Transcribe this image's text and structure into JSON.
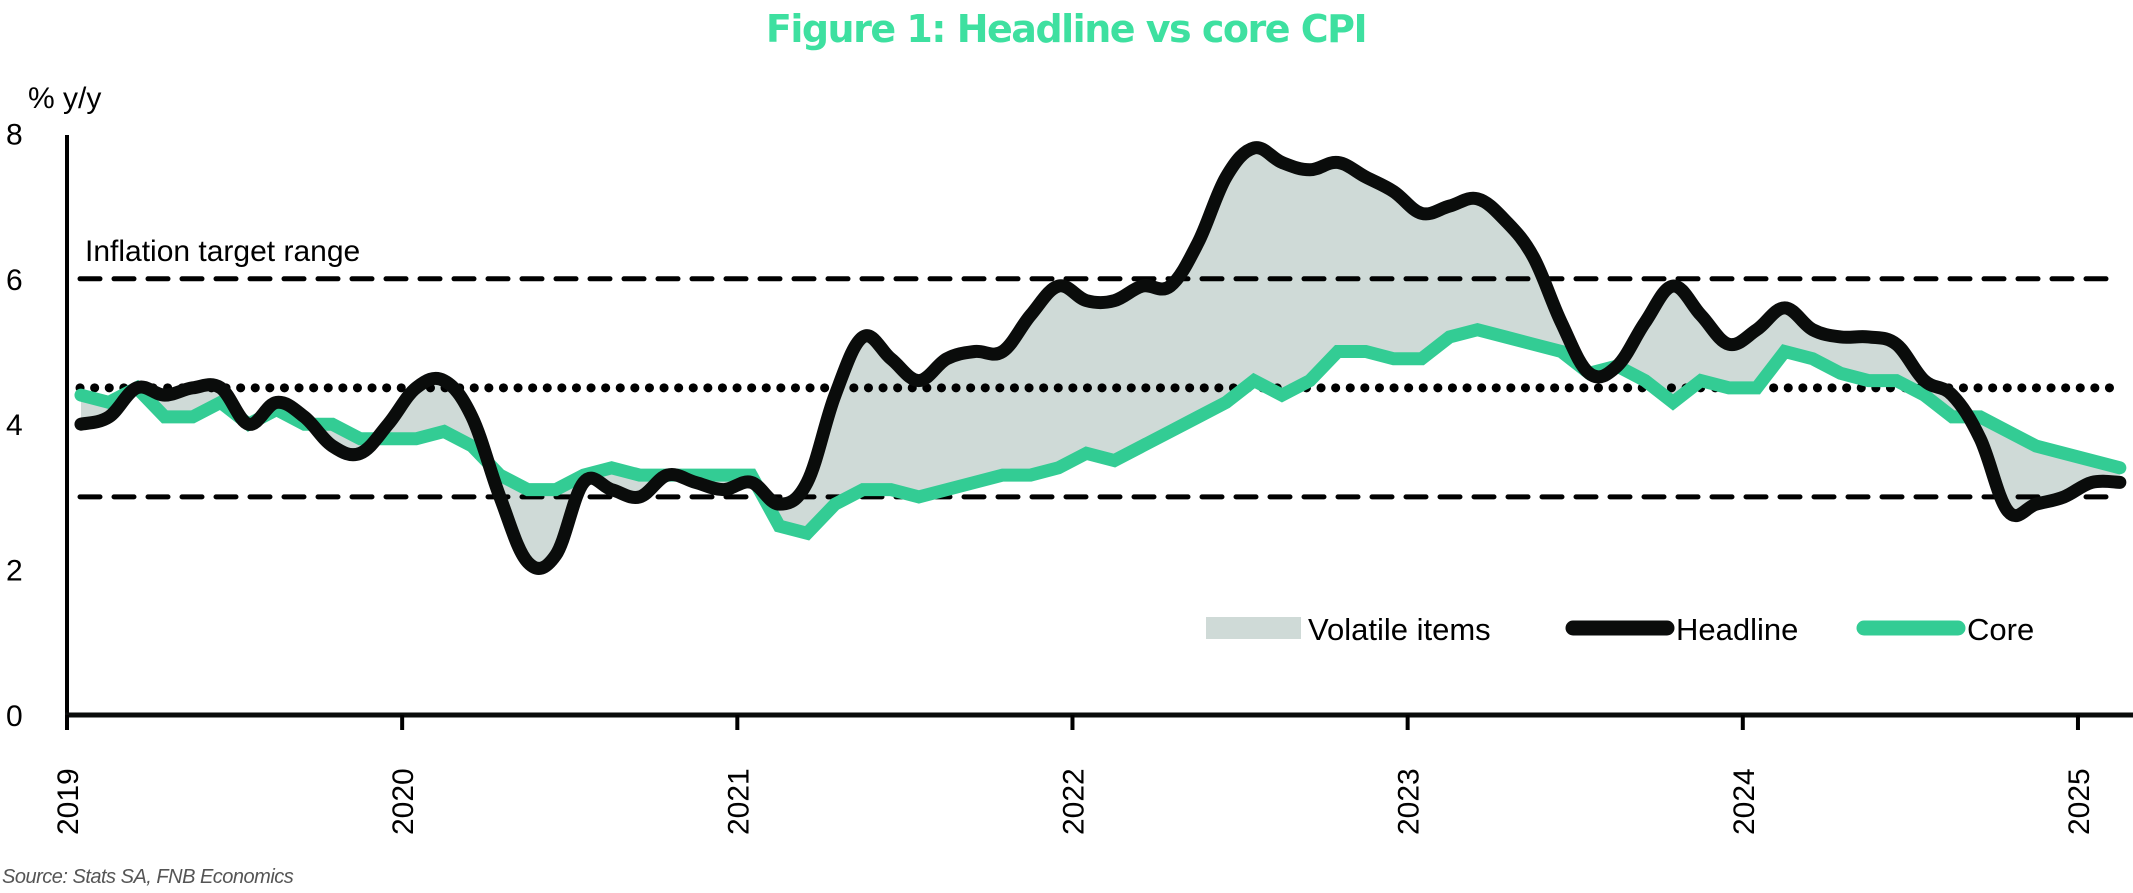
{
  "chart_data": {
    "type": "line",
    "title": "Figure 1: Headline vs core CPI",
    "ylabel": "% y/y",
    "xlabel": "",
    "ylim": [
      0,
      8
    ],
    "yticks": [
      "0",
      "2",
      "4",
      "6",
      "8"
    ],
    "xticks": [
      "2019",
      "2020",
      "2021",
      "2022",
      "2023",
      "2024",
      "2025"
    ],
    "x_start": "2019-01",
    "frequency": "monthly",
    "annotations": [
      {
        "text": "Inflation target range",
        "type": "band-label"
      }
    ],
    "reference_lines": [
      {
        "value": 6,
        "style": "dashed",
        "name": "target-upper"
      },
      {
        "value": 4.5,
        "style": "dotted",
        "name": "target-midpoint"
      },
      {
        "value": 3,
        "style": "dashed",
        "name": "target-lower"
      }
    ],
    "legend": {
      "position": "bottom-right",
      "items": [
        {
          "label": "Volatile items",
          "type": "area",
          "color": "#cfdad7"
        },
        {
          "label": "Headline",
          "type": "line",
          "color": "#0a0c0b"
        },
        {
          "label": "Core",
          "type": "line",
          "color": "#33cc94"
        }
      ]
    },
    "series": [
      {
        "name": "Headline",
        "color": "#0a0c0b",
        "smooth": true,
        "values": [
          4.0,
          4.1,
          4.5,
          4.4,
          4.5,
          4.5,
          4.0,
          4.3,
          4.1,
          3.7,
          3.6,
          4.0,
          4.5,
          4.6,
          4.1,
          3.0,
          2.1,
          2.2,
          3.2,
          3.1,
          3.0,
          3.3,
          3.2,
          3.1,
          3.2,
          2.9,
          3.2,
          4.4,
          5.2,
          4.9,
          4.6,
          4.9,
          5.0,
          5.0,
          5.5,
          5.9,
          5.7,
          5.7,
          5.9,
          5.9,
          6.5,
          7.4,
          7.8,
          7.6,
          7.5,
          7.6,
          7.4,
          7.2,
          6.9,
          7.0,
          7.1,
          6.8,
          6.3,
          5.4,
          4.7,
          4.8,
          5.4,
          5.9,
          5.5,
          5.1,
          5.3,
          5.6,
          5.3,
          5.2,
          5.2,
          5.1,
          4.6,
          4.4,
          3.8,
          2.8,
          2.9,
          3.0,
          3.2,
          3.2
        ]
      },
      {
        "name": "Core",
        "color": "#33cc94",
        "smooth": false,
        "values": [
          4.4,
          4.3,
          4.5,
          4.1,
          4.1,
          4.3,
          4.0,
          4.2,
          4.0,
          4.0,
          3.8,
          3.8,
          3.8,
          3.9,
          3.7,
          3.3,
          3.1,
          3.1,
          3.3,
          3.4,
          3.3,
          3.3,
          3.3,
          3.3,
          3.3,
          2.6,
          2.5,
          2.9,
          3.1,
          3.1,
          3.0,
          3.1,
          3.2,
          3.3,
          3.3,
          3.4,
          3.6,
          3.5,
          3.7,
          3.9,
          4.1,
          4.3,
          4.6,
          4.4,
          4.6,
          5.0,
          5.0,
          4.9,
          4.9,
          5.2,
          5.3,
          5.2,
          5.1,
          5.0,
          4.7,
          4.8,
          4.6,
          4.3,
          4.6,
          4.5,
          4.5,
          5.0,
          4.9,
          4.7,
          4.6,
          4.6,
          4.4,
          4.1,
          4.1,
          3.9,
          3.7,
          3.6,
          3.5,
          3.4
        ]
      }
    ],
    "source": "Source: Stats SA, FNB Economics"
  }
}
